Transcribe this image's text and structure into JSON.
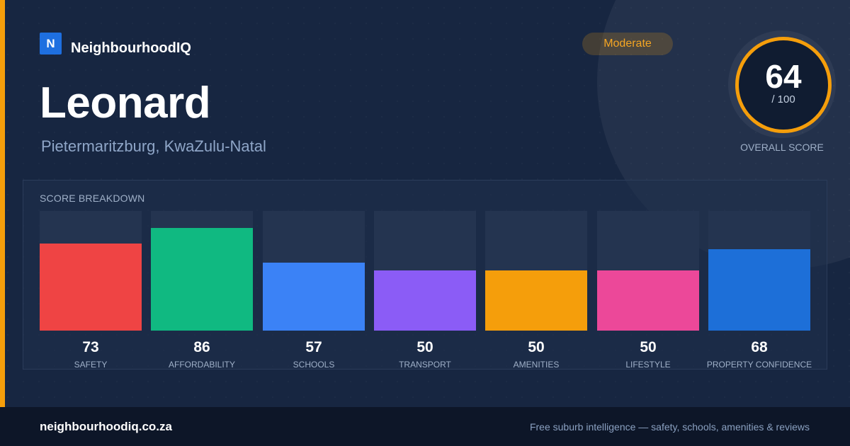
{
  "brand": {
    "logo_letter": "N",
    "name": "NeighbourhoodIQ"
  },
  "suburb": {
    "name": "Leonard",
    "location": "Pietermaritzburg, KwaZulu-Natal"
  },
  "rating_badge": {
    "label": "Moderate",
    "color": "#f59e0b"
  },
  "overall": {
    "score": "64",
    "max": "/ 100",
    "caption": "OVERALL SCORE",
    "ring_color": "#f59e0b"
  },
  "breakdown": {
    "title": "SCORE BREAKDOWN",
    "max_value": 100,
    "categories": [
      {
        "label": "SAFETY",
        "value": 73,
        "color": "#ef4444"
      },
      {
        "label": "AFFORDABILITY",
        "value": 86,
        "color": "#10b981"
      },
      {
        "label": "SCHOOLS",
        "value": 57,
        "color": "#3b82f6"
      },
      {
        "label": "TRANSPORT",
        "value": 50,
        "color": "#8b5cf6"
      },
      {
        "label": "AMENITIES",
        "value": 50,
        "color": "#f59e0b"
      },
      {
        "label": "LIFESTYLE",
        "value": 50,
        "color": "#ec4899"
      },
      {
        "label": "PROPERTY CONFIDENCE",
        "value": 68,
        "color": "#1d6fd8"
      }
    ]
  },
  "footer": {
    "url": "neighbourhoodiq.co.za",
    "tagline": "Free suburb intelligence — safety, schools, amenities & reviews"
  }
}
